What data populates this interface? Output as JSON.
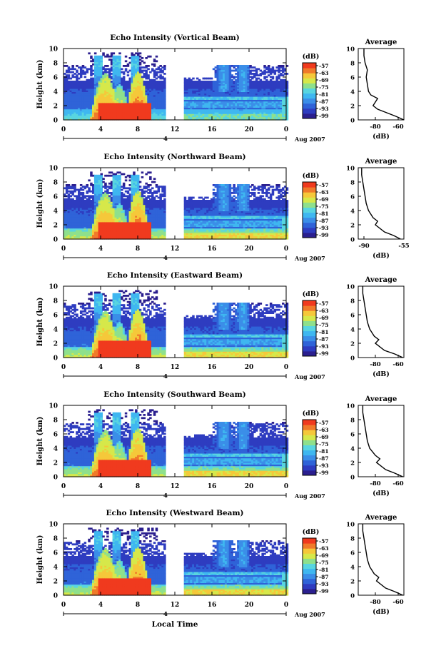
{
  "figure": {
    "xlabel": "Local Time",
    "date_label": "Aug 2007",
    "day_label": "4",
    "height_label": "Height (km)",
    "unit_label": "(dB)",
    "avg_title": "Average",
    "avg_xlabel": "(dB)"
  },
  "colors": {
    "scale": [
      "#2b1f8f",
      "#2e3cc0",
      "#2f63d8",
      "#3b8ee8",
      "#3fb7f0",
      "#58d5e0",
      "#8ee08c",
      "#d6e84a",
      "#f5c83a",
      "#f07a2a",
      "#f03a1e"
    ],
    "text": "#000000",
    "background": "#ffffff"
  },
  "chart_data": [
    {
      "type": "heatmap",
      "title": "Echo Intensity (Vertical Beam)",
      "xlabel": "",
      "ylabel": "Height (km)",
      "xlim": [
        0,
        24
      ],
      "ylim": [
        0,
        10
      ],
      "xticks": [
        "0",
        "4",
        "8",
        "12",
        "16",
        "20",
        "0"
      ],
      "yticks": [
        "0",
        "2",
        "4",
        "6",
        "8",
        "10"
      ],
      "colorbar": {
        "label": "(dB)",
        "ticks": [
          "-57",
          "-63",
          "-69",
          "-75",
          "-81",
          "-87",
          "-93",
          "-99"
        ]
      },
      "gap_hours": [
        11,
        13
      ],
      "average": {
        "title": "Average",
        "xlabel": "(dB)",
        "xticks": [
          "-80",
          "-60"
        ],
        "xlim": [
          -95,
          -55
        ],
        "profile": [
          [
            0,
            -55
          ],
          [
            0.5,
            -62
          ],
          [
            1,
            -70
          ],
          [
            1.5,
            -78
          ],
          [
            2,
            -82
          ],
          [
            2.5,
            -80
          ],
          [
            3,
            -78
          ],
          [
            3.5,
            -84
          ],
          [
            4,
            -86
          ],
          [
            5,
            -87
          ],
          [
            6,
            -88
          ],
          [
            7,
            -87
          ],
          [
            8,
            -89
          ],
          [
            9,
            -90
          ],
          [
            10,
            -90
          ]
        ]
      }
    },
    {
      "type": "heatmap",
      "title": "Echo Intensity (Northward Beam)",
      "xlabel": "",
      "ylabel": "Height (km)",
      "xlim": [
        0,
        24
      ],
      "ylim": [
        0,
        10
      ],
      "xticks": [
        "0",
        "4",
        "8",
        "12",
        "16",
        "20",
        "0"
      ],
      "yticks": [
        "0",
        "2",
        "4",
        "6",
        "8",
        "10"
      ],
      "colorbar": {
        "label": "(dB)",
        "ticks": [
          "-57",
          "-63",
          "-69",
          "-75",
          "-81",
          "-87",
          "-93",
          "-99"
        ]
      },
      "gap_hours": [
        11,
        13
      ],
      "average": {
        "title": "Average",
        "xlabel": "(dB)",
        "xticks": [
          "-90",
          "-55"
        ],
        "xlim": [
          -95,
          -55
        ],
        "profile": [
          [
            0,
            -58
          ],
          [
            0.5,
            -64
          ],
          [
            1,
            -72
          ],
          [
            2,
            -80
          ],
          [
            2.5,
            -78
          ],
          [
            3,
            -82
          ],
          [
            4,
            -86
          ],
          [
            5,
            -88
          ],
          [
            6,
            -89
          ],
          [
            7,
            -90
          ],
          [
            8,
            -91
          ],
          [
            9,
            -92
          ],
          [
            10,
            -92
          ]
        ]
      }
    },
    {
      "type": "heatmap",
      "title": "Echo Intensity (Eastward Beam)",
      "xlabel": "",
      "ylabel": "Height (km)",
      "xlim": [
        0,
        24
      ],
      "ylim": [
        0,
        10
      ],
      "xticks": [
        "0",
        "4",
        "8",
        "12",
        "16",
        "20",
        "0"
      ],
      "yticks": [
        "0",
        "2",
        "4",
        "6",
        "8",
        "10"
      ],
      "colorbar": {
        "label": "(dB)",
        "ticks": [
          "-57",
          "-63",
          "-69",
          "-75",
          "-81",
          "-87",
          "-93",
          "-99"
        ]
      },
      "gap_hours": [
        11,
        13
      ],
      "average": {
        "title": "Average",
        "xlabel": "(dB)",
        "xticks": [
          "-80",
          "-60"
        ],
        "xlim": [
          -95,
          -55
        ],
        "profile": [
          [
            0,
            -56
          ],
          [
            0.5,
            -63
          ],
          [
            1,
            -72
          ],
          [
            2,
            -80
          ],
          [
            2.5,
            -77
          ],
          [
            3,
            -81
          ],
          [
            4,
            -85
          ],
          [
            5,
            -87
          ],
          [
            6,
            -88
          ],
          [
            7,
            -89
          ],
          [
            8,
            -90
          ],
          [
            9,
            -91
          ],
          [
            10,
            -91
          ]
        ]
      }
    },
    {
      "type": "heatmap",
      "title": "Echo Intensity (Southward Beam)",
      "xlabel": "",
      "ylabel": "Height (km)",
      "xlim": [
        0,
        24
      ],
      "ylim": [
        0,
        10
      ],
      "xticks": [
        "0",
        "4",
        "8",
        "12",
        "16",
        "20",
        "0"
      ],
      "yticks": [
        "0",
        "2",
        "4",
        "6",
        "8",
        "10"
      ],
      "colorbar": {
        "label": "(dB)",
        "ticks": [
          "-57",
          "-63",
          "-69",
          "-75",
          "-81",
          "-87",
          "-93",
          "-99"
        ]
      },
      "gap_hours": [
        11,
        13
      ],
      "average": {
        "title": "Average",
        "xlabel": "(dB)",
        "xticks": [
          "-80",
          "-60"
        ],
        "xlim": [
          -95,
          -55
        ],
        "profile": [
          [
            0,
            -56
          ],
          [
            0.5,
            -63
          ],
          [
            1,
            -71
          ],
          [
            2,
            -79
          ],
          [
            2.5,
            -76
          ],
          [
            3,
            -80
          ],
          [
            4,
            -85
          ],
          [
            5,
            -87
          ],
          [
            6,
            -88
          ],
          [
            7,
            -89
          ],
          [
            8,
            -90
          ],
          [
            9,
            -91
          ],
          [
            10,
            -91
          ]
        ]
      }
    },
    {
      "type": "heatmap",
      "title": "Echo Intensity (Westward Beam)",
      "xlabel": "Local Time",
      "ylabel": "Height (km)",
      "xlim": [
        0,
        24
      ],
      "ylim": [
        0,
        10
      ],
      "xticks": [
        "0",
        "4",
        "8",
        "12",
        "16",
        "20",
        "0"
      ],
      "yticks": [
        "0",
        "2",
        "4",
        "6",
        "8",
        "10"
      ],
      "colorbar": {
        "label": "(dB)",
        "ticks": [
          "-57",
          "-63",
          "-69",
          "-75",
          "-81",
          "-87",
          "-93",
          "-99"
        ]
      },
      "gap_hours": [
        11,
        13
      ],
      "average": {
        "title": "Average",
        "xlabel": "(dB)",
        "xticks": [
          "-80",
          "-60"
        ],
        "xlim": [
          -95,
          -55
        ],
        "profile": [
          [
            0,
            -56
          ],
          [
            0.5,
            -63
          ],
          [
            1,
            -71
          ],
          [
            2,
            -79
          ],
          [
            2.5,
            -77
          ],
          [
            3,
            -81
          ],
          [
            4,
            -85
          ],
          [
            5,
            -87
          ],
          [
            6,
            -88
          ],
          [
            7,
            -89
          ],
          [
            8,
            -90
          ],
          [
            9,
            -91
          ],
          [
            10,
            -91
          ]
        ]
      }
    }
  ]
}
